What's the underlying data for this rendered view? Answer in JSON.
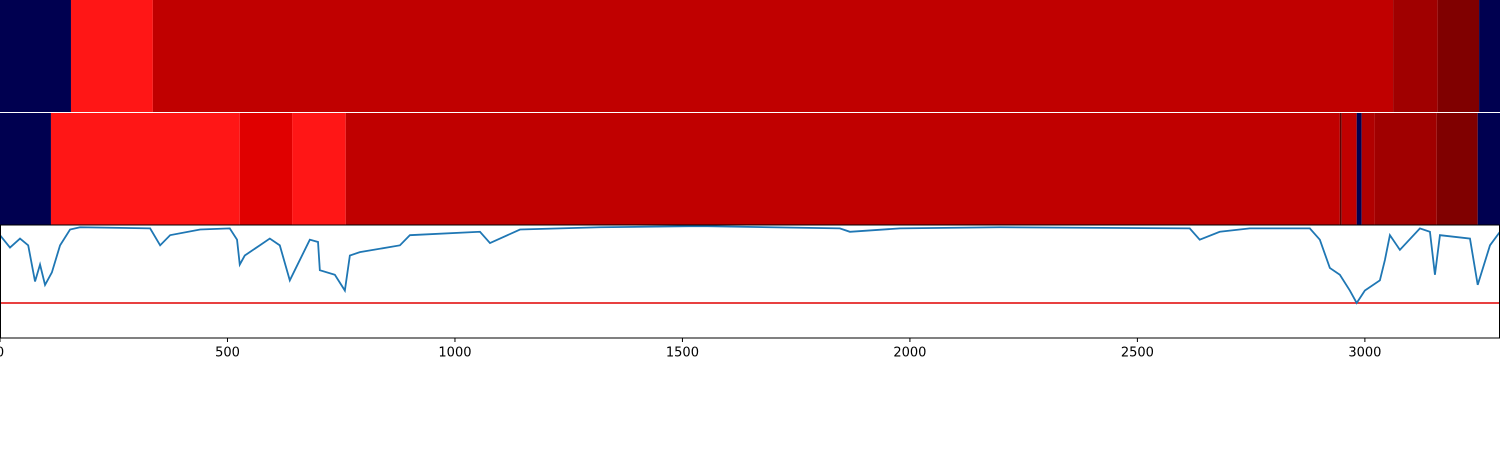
{
  "chart_data": [
    {
      "type": "band",
      "xlim": [
        0,
        3297
      ],
      "segments": [
        {
          "start": 0,
          "end": 156,
          "color": "#000050"
        },
        {
          "start": 156,
          "end": 336,
          "color": "#ff1616"
        },
        {
          "start": 336,
          "end": 3062,
          "color": "#c00000"
        },
        {
          "start": 3062,
          "end": 3160,
          "color": "#a00000"
        },
        {
          "start": 3160,
          "end": 3251,
          "color": "#800000"
        },
        {
          "start": 3251,
          "end": 3297,
          "color": "#000050"
        }
      ]
    },
    {
      "type": "band",
      "xlim": [
        0,
        3297
      ],
      "segments": [
        {
          "start": 0,
          "end": 112,
          "color": "#000050"
        },
        {
          "start": 112,
          "end": 527,
          "color": "#ff1616"
        },
        {
          "start": 527,
          "end": 642,
          "color": "#e00000"
        },
        {
          "start": 642,
          "end": 760,
          "color": "#ff1616"
        },
        {
          "start": 760,
          "end": 2945,
          "color": "#c00000"
        },
        {
          "start": 2945,
          "end": 2949,
          "color": "#600000"
        },
        {
          "start": 2949,
          "end": 2982,
          "color": "#c00000"
        },
        {
          "start": 2982,
          "end": 2993,
          "color": "#000050"
        },
        {
          "start": 2993,
          "end": 3022,
          "color": "#b00000"
        },
        {
          "start": 3022,
          "end": 3158,
          "color": "#a00000"
        },
        {
          "start": 3158,
          "end": 3248,
          "color": "#800000"
        },
        {
          "start": 3248,
          "end": 3297,
          "color": "#000050"
        }
      ]
    },
    {
      "type": "line",
      "xlim": [
        0,
        3297
      ],
      "ylim": [
        0,
        1
      ],
      "xticks": [
        0,
        500,
        1000,
        1500,
        2000,
        2500,
        3000
      ],
      "threshold": 0.31,
      "threshold_color": "#e00000",
      "color": "#1f77b4",
      "x": [
        0,
        22,
        44,
        62,
        77,
        88,
        99,
        114,
        132,
        154,
        176,
        330,
        352,
        374,
        440,
        505,
        521,
        527,
        538,
        571,
        593,
        615,
        637,
        648,
        681,
        699,
        703,
        736,
        758,
        769,
        791,
        879,
        901,
        1055,
        1077,
        1143,
        1319,
        1538,
        1846,
        1868,
        1978,
        2198,
        2615,
        2637,
        2681,
        2747,
        2879,
        2901,
        2923,
        2945,
        2967,
        2982,
        3000,
        3033,
        3044,
        3055,
        3077,
        3121,
        3143,
        3154,
        3165,
        3231,
        3248,
        3275,
        3297
      ],
      "values": [
        0.91,
        0.8,
        0.88,
        0.82,
        0.5,
        0.65,
        0.47,
        0.58,
        0.82,
        0.96,
        0.98,
        0.97,
        0.82,
        0.91,
        0.96,
        0.97,
        0.87,
        0.65,
        0.73,
        0.82,
        0.88,
        0.82,
        0.51,
        0.6,
        0.87,
        0.85,
        0.6,
        0.56,
        0.42,
        0.73,
        0.76,
        0.82,
        0.91,
        0.94,
        0.84,
        0.96,
        0.98,
        0.99,
        0.97,
        0.94,
        0.97,
        0.98,
        0.97,
        0.87,
        0.94,
        0.97,
        0.97,
        0.87,
        0.62,
        0.56,
        0.42,
        0.31,
        0.42,
        0.51,
        0.69,
        0.91,
        0.78,
        0.97,
        0.94,
        0.56,
        0.91,
        0.88,
        0.47,
        0.82,
        0.94
      ]
    }
  ]
}
